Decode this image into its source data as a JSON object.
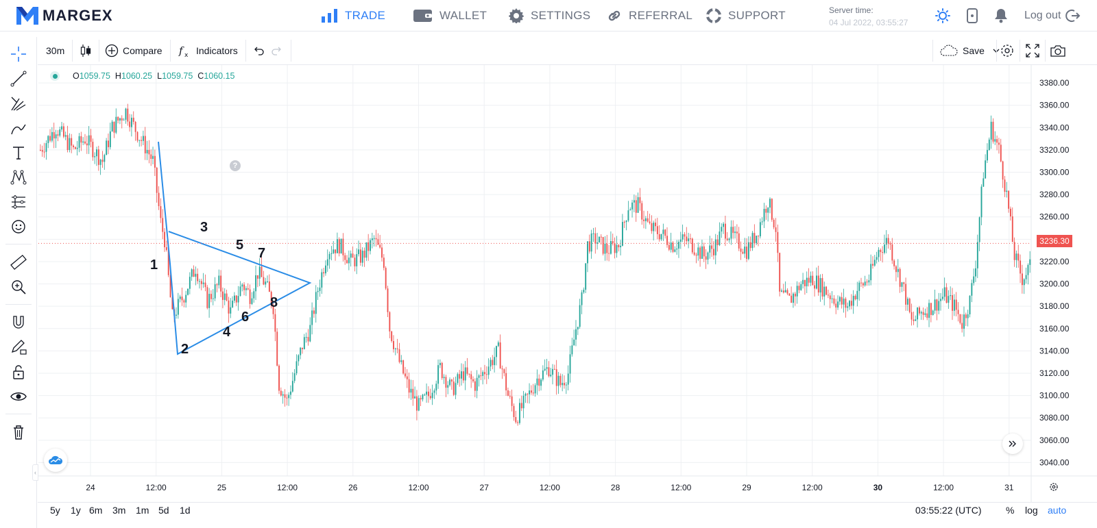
{
  "brand": {
    "name": "MARGEX"
  },
  "nav": {
    "items": [
      {
        "label": "TRADE",
        "icon": "bar-chart-icon",
        "active": true
      },
      {
        "label": "WALLET",
        "icon": "wallet-icon",
        "active": false
      },
      {
        "label": "SETTINGS",
        "icon": "gear-icon",
        "active": false
      },
      {
        "label": "REFERRAL",
        "icon": "link-icon",
        "active": false
      },
      {
        "label": "SUPPORT",
        "icon": "lifebuoy-icon",
        "active": false
      }
    ],
    "server_time_label": "Server time:",
    "server_time_value": "04 Jul 2022, 03:55:27",
    "logout_label": "Log out"
  },
  "toolbar": {
    "interval": "30m",
    "compare_label": "Compare",
    "indicators_label": "Indicators",
    "save_label": "Save"
  },
  "legend": {
    "o_label": "O",
    "o_value": "1059.75",
    "h_label": "H",
    "h_value": "1060.25",
    "l_label": "L",
    "l_value": "1059.75",
    "c_label": "C",
    "c_value": "1060.15"
  },
  "bottom": {
    "ranges": [
      "5y",
      "1y",
      "6m",
      "3m",
      "1m",
      "5d",
      "1d"
    ],
    "time_utc": "03:55:22 (UTC)",
    "percent_label": "%",
    "log_label": "log",
    "auto_label": "auto"
  },
  "colors": {
    "accent": "#2f7ff6",
    "up": "#26a69a",
    "down": "#ef5350",
    "drawing": "#2a8ce6",
    "up_candle": "#26a69a",
    "down_candle": "#ef5350"
  },
  "chart_data": {
    "type": "candlestick",
    "y_ticks": [
      3380,
      3360,
      3340,
      3320,
      3300,
      3280,
      3260,
      3240,
      3220,
      3200,
      3180,
      3160,
      3140,
      3120,
      3100,
      3080,
      3060,
      3040
    ],
    "y_tick_labels": [
      "3380.00",
      "3360.00",
      "3340.00",
      "3320.00",
      "3300.00",
      "3280.00",
      "3260.00",
      "3240.00",
      "3220.00",
      "3200.00",
      "3180.00",
      "3160.00",
      "3140.00",
      "3120.00",
      "3100.00",
      "3080.00",
      "3060.00",
      "3040.00"
    ],
    "ylim": [
      3028,
      3396
    ],
    "x_ticks": [
      {
        "label": "24",
        "bold": false
      },
      {
        "label": "12:00",
        "bold": false
      },
      {
        "label": "25",
        "bold": false
      },
      {
        "label": "12:00",
        "bold": false
      },
      {
        "label": "26",
        "bold": false
      },
      {
        "label": "12:00",
        "bold": false
      },
      {
        "label": "27",
        "bold": false
      },
      {
        "label": "12:00",
        "bold": false
      },
      {
        "label": "28",
        "bold": false
      },
      {
        "label": "12:00",
        "bold": false
      },
      {
        "label": "29",
        "bold": false
      },
      {
        "label": "12:00",
        "bold": false
      },
      {
        "label": "30",
        "bold": true
      },
      {
        "label": "12:00",
        "bold": false
      },
      {
        "label": "31",
        "bold": false
      }
    ],
    "last_price": "3236.30",
    "last_value": 3236.3,
    "path_anchors": [
      [
        0,
        3320
      ],
      [
        8,
        3340
      ],
      [
        17,
        3320
      ],
      [
        23,
        3330
      ],
      [
        32,
        3310
      ],
      [
        37,
        3340
      ],
      [
        44,
        3355
      ],
      [
        50,
        3335
      ],
      [
        55,
        3320
      ],
      [
        58,
        3310
      ],
      [
        62,
        3255
      ],
      [
        64,
        3240
      ],
      [
        68,
        3170
      ],
      [
        74,
        3190
      ],
      [
        80,
        3215
      ],
      [
        86,
        3185
      ],
      [
        92,
        3200
      ],
      [
        98,
        3175
      ],
      [
        104,
        3200
      ],
      [
        108,
        3190
      ],
      [
        112,
        3210
      ],
      [
        116,
        3200
      ],
      [
        120,
        3180
      ],
      [
        123,
        3110
      ],
      [
        127,
        3095
      ],
      [
        131,
        3120
      ],
      [
        135,
        3145
      ],
      [
        139,
        3160
      ],
      [
        143,
        3195
      ],
      [
        148,
        3230
      ],
      [
        154,
        3235
      ],
      [
        160,
        3220
      ],
      [
        166,
        3225
      ],
      [
        172,
        3240
      ],
      [
        177,
        3220
      ],
      [
        180,
        3160
      ],
      [
        185,
        3130
      ],
      [
        190,
        3105
      ],
      [
        195,
        3090
      ],
      [
        200,
        3100
      ],
      [
        206,
        3125
      ],
      [
        212,
        3105
      ],
      [
        218,
        3120
      ],
      [
        224,
        3110
      ],
      [
        230,
        3125
      ],
      [
        236,
        3140
      ],
      [
        241,
        3100
      ],
      [
        245,
        3080
      ],
      [
        250,
        3095
      ],
      [
        256,
        3115
      ],
      [
        262,
        3125
      ],
      [
        268,
        3110
      ],
      [
        272,
        3120
      ],
      [
        276,
        3160
      ],
      [
        279,
        3185
      ],
      [
        282,
        3235
      ],
      [
        286,
        3240
      ],
      [
        292,
        3230
      ],
      [
        298,
        3235
      ],
      [
        303,
        3270
      ],
      [
        308,
        3270
      ],
      [
        314,
        3250
      ],
      [
        320,
        3245
      ],
      [
        326,
        3235
      ],
      [
        332,
        3240
      ],
      [
        336,
        3235
      ],
      [
        342,
        3225
      ],
      [
        348,
        3235
      ],
      [
        352,
        3250
      ],
      [
        358,
        3240
      ],
      [
        364,
        3230
      ],
      [
        369,
        3245
      ],
      [
        375,
        3275
      ],
      [
        379,
        3250
      ],
      [
        381,
        3190
      ],
      [
        386,
        3185
      ],
      [
        392,
        3200
      ],
      [
        398,
        3205
      ],
      [
        404,
        3195
      ],
      [
        410,
        3185
      ],
      [
        416,
        3180
      ],
      [
        421,
        3195
      ],
      [
        427,
        3205
      ],
      [
        432,
        3230
      ],
      [
        437,
        3240
      ],
      [
        441,
        3215
      ],
      [
        445,
        3195
      ],
      [
        449,
        3165
      ],
      [
        454,
        3175
      ],
      [
        460,
        3180
      ],
      [
        466,
        3190
      ],
      [
        471,
        3180
      ],
      [
        475,
        3165
      ],
      [
        479,
        3185
      ],
      [
        482,
        3220
      ],
      [
        486,
        3300
      ],
      [
        490,
        3340
      ],
      [
        494,
        3320
      ],
      [
        498,
        3280
      ],
      [
        502,
        3225
      ],
      [
        506,
        3205
      ],
      [
        510,
        3215
      ],
      [
        514,
        3235
      ]
    ]
  }
}
